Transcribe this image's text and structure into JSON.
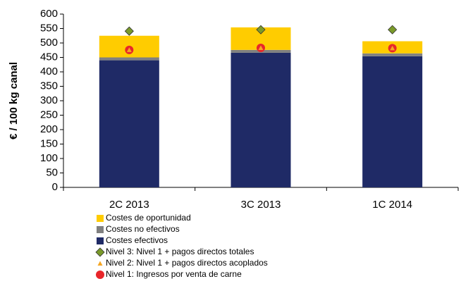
{
  "chart_data": {
    "type": "bar",
    "stacked": true,
    "ylabel": "€ / 100 kg canal",
    "categories": [
      "2C 2013",
      "3C 2013",
      "1C 2014"
    ],
    "ylim": [
      0,
      600
    ],
    "yticks": [
      0,
      50,
      100,
      150,
      200,
      250,
      300,
      350,
      400,
      450,
      500,
      550,
      600
    ],
    "series": [
      {
        "name": "Costes de oportunidad",
        "color": "#ffcc00",
        "kind": "bar",
        "values": [
          75,
          78,
          42
        ]
      },
      {
        "name": "Costes no efectivos",
        "color": "#808080",
        "kind": "bar",
        "values": [
          10,
          10,
          10
        ]
      },
      {
        "name": "Costes efectivos",
        "color": "#1f2a66",
        "kind": "bar",
        "values": [
          440,
          466,
          454
        ]
      },
      {
        "name": "Nivel 3: Nivel 1 + pagos directos totales",
        "color": "#7a9a2a",
        "kind": "marker",
        "marker": "diamond",
        "values": [
          541,
          546,
          546
        ]
      },
      {
        "name": "Nivel 2: Nivel 1 + pagos directos acoplados",
        "color": "#f5a623",
        "kind": "marker",
        "marker": "triangle",
        "values": [
          476,
          483,
          482
        ]
      },
      {
        "name": "Nivel 1: Ingresos por venta de carne",
        "color": "#e8262a",
        "kind": "marker",
        "marker": "circle",
        "values": [
          476,
          483,
          482
        ]
      }
    ]
  }
}
